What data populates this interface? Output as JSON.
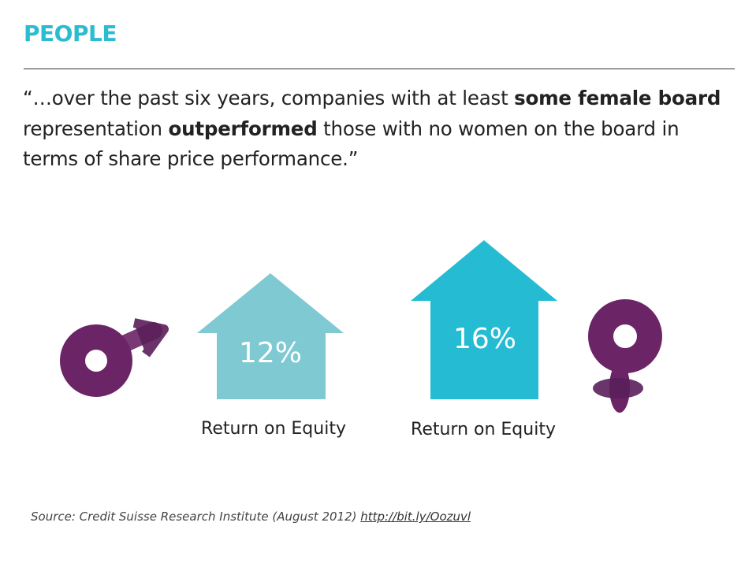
{
  "title": "PEOPLE",
  "quote": {
    "p1": "“…over the past six years, companies with at least ",
    "b1": "some female board",
    "p2": " representation ",
    "b2": "outperformed",
    "p3": " those with no women on the board in terms of share price performance.”"
  },
  "male": {
    "value": "12%",
    "label": "Return on Equity",
    "color": "#7fc9d3"
  },
  "female": {
    "value": "16%",
    "label": "Return on Equity",
    "color": "#25bcd3"
  },
  "symbol_color": "#6b2466",
  "source": {
    "text": "Source: Credit Suisse Research Institute (August 2012) ",
    "link": "http://bit.ly/Oozuvl"
  }
}
